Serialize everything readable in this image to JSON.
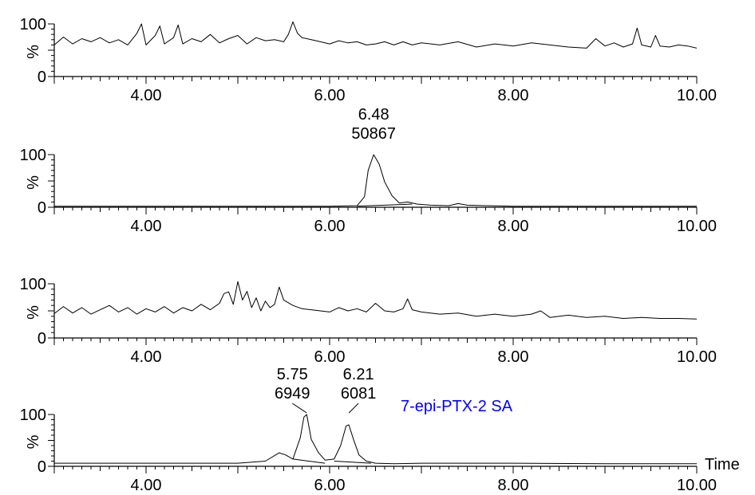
{
  "chart_data": [
    {
      "type": "line",
      "xlim": [
        3.0,
        10.0
      ],
      "ylim": [
        0,
        100
      ],
      "x_ticks": [
        "4.00",
        "6.00",
        "8.00",
        "10.00"
      ],
      "y_ticks": [
        "0",
        "100"
      ],
      "ylabel": "%",
      "xlabel": "",
      "series": [
        {
          "x": [
            3.0,
            3.1,
            3.2,
            3.3,
            3.4,
            3.5,
            3.6,
            3.7,
            3.8,
            3.9,
            3.95,
            4.0,
            4.1,
            4.15,
            4.2,
            4.3,
            4.35,
            4.4,
            4.5,
            4.6,
            4.7,
            4.8,
            4.9,
            5.0,
            5.1,
            5.2,
            5.3,
            5.4,
            5.5,
            5.55,
            5.6,
            5.65,
            5.7,
            5.8,
            5.9,
            6.0,
            6.1,
            6.2,
            6.3,
            6.4,
            6.5,
            6.6,
            6.7,
            6.8,
            6.9,
            7.0,
            7.2,
            7.4,
            7.6,
            7.8,
            8.0,
            8.2,
            8.4,
            8.6,
            8.8,
            8.9,
            9.0,
            9.1,
            9.2,
            9.3,
            9.35,
            9.4,
            9.5,
            9.55,
            9.6,
            9.7,
            9.8,
            9.9,
            10.0
          ],
          "y": [
            60,
            75,
            62,
            72,
            66,
            74,
            64,
            70,
            60,
            82,
            100,
            60,
            78,
            96,
            62,
            74,
            98,
            62,
            72,
            66,
            80,
            64,
            72,
            78,
            62,
            74,
            68,
            70,
            66,
            80,
            104,
            82,
            74,
            70,
            66,
            62,
            68,
            64,
            66,
            60,
            62,
            66,
            60,
            66,
            60,
            64,
            60,
            66,
            56,
            62,
            58,
            64,
            60,
            56,
            54,
            72,
            58,
            64,
            56,
            62,
            92,
            60,
            56,
            78,
            58,
            56,
            60,
            58,
            54
          ]
        }
      ]
    },
    {
      "type": "line",
      "xlim": [
        3.0,
        10.0
      ],
      "ylim": [
        0,
        100
      ],
      "x_ticks": [
        "4.00",
        "6.00",
        "8.00",
        "10.00"
      ],
      "y_ticks": [
        "0",
        "100"
      ],
      "ylabel": "%",
      "xlabel": "",
      "series": [
        {
          "x": [
            3.0,
            5.0,
            6.0,
            6.3,
            6.38,
            6.42,
            6.48,
            6.54,
            6.6,
            6.68,
            6.76,
            6.85,
            6.95,
            7.1,
            7.3,
            7.4,
            7.5,
            7.7,
            8.0,
            9.0,
            10.0
          ],
          "y": [
            2,
            2,
            2,
            3,
            20,
            70,
            100,
            82,
            48,
            22,
            8,
            10,
            6,
            4,
            3,
            7,
            4,
            3,
            2,
            2,
            2
          ]
        }
      ],
      "annotations": [
        {
          "rt": "6.48",
          "area": "50867"
        }
      ]
    },
    {
      "type": "line",
      "xlim": [
        3.0,
        10.0
      ],
      "ylim": [
        0,
        100
      ],
      "x_ticks": [
        "4.00",
        "6.00",
        "8.00",
        "10.00"
      ],
      "y_ticks": [
        "0",
        "100"
      ],
      "ylabel": "%",
      "xlabel": "",
      "series": [
        {
          "x": [
            3.0,
            3.1,
            3.2,
            3.3,
            3.4,
            3.5,
            3.6,
            3.7,
            3.8,
            3.9,
            4.0,
            4.1,
            4.2,
            4.3,
            4.4,
            4.5,
            4.6,
            4.7,
            4.8,
            4.85,
            4.9,
            4.95,
            5.0,
            5.05,
            5.1,
            5.15,
            5.2,
            5.25,
            5.3,
            5.35,
            5.4,
            5.45,
            5.5,
            5.6,
            5.7,
            5.8,
            5.9,
            6.0,
            6.1,
            6.2,
            6.3,
            6.4,
            6.5,
            6.6,
            6.7,
            6.8,
            6.85,
            6.9,
            7.0,
            7.2,
            7.4,
            7.6,
            7.8,
            8.0,
            8.2,
            8.3,
            8.4,
            8.6,
            8.8,
            9.0,
            9.2,
            9.4,
            9.6,
            9.8,
            10.0
          ],
          "y": [
            45,
            58,
            46,
            56,
            44,
            52,
            60,
            48,
            56,
            44,
            54,
            48,
            58,
            46,
            56,
            50,
            62,
            52,
            64,
            82,
            85,
            62,
            104,
            70,
            86,
            56,
            74,
            50,
            68,
            56,
            62,
            94,
            70,
            60,
            54,
            52,
            50,
            48,
            56,
            50,
            54,
            48,
            64,
            50,
            48,
            54,
            72,
            52,
            48,
            44,
            46,
            40,
            44,
            40,
            44,
            50,
            38,
            42,
            38,
            40,
            36,
            38,
            36,
            36,
            35
          ]
        }
      ]
    },
    {
      "type": "line",
      "xlim": [
        3.0,
        10.0
      ],
      "ylim": [
        0,
        100
      ],
      "x_ticks": [
        "4.00",
        "6.00",
        "8.00",
        "10.00"
      ],
      "y_ticks": [
        "0",
        "100"
      ],
      "ylabel": "%",
      "xlabel": "Time",
      "series": [
        {
          "x": [
            3.0,
            4.0,
            5.0,
            5.3,
            5.45,
            5.52,
            5.6,
            5.68,
            5.72,
            5.75,
            5.8,
            5.88,
            5.95,
            6.05,
            6.12,
            6.18,
            6.21,
            6.26,
            6.32,
            6.4,
            6.5,
            6.7,
            7.0,
            8.0,
            9.0,
            10.0
          ],
          "y": [
            6,
            6,
            6,
            10,
            26,
            22,
            14,
            55,
            95,
            100,
            52,
            26,
            12,
            14,
            40,
            78,
            80,
            52,
            22,
            10,
            6,
            5,
            6,
            6,
            5,
            5
          ]
        }
      ],
      "annotations": [
        {
          "rt": "5.75",
          "area": "6949"
        },
        {
          "rt": "6.21",
          "area": "6081"
        }
      ],
      "compound": "7-epi-PTX-2 SA",
      "compound_color": "#0000ff"
    }
  ]
}
